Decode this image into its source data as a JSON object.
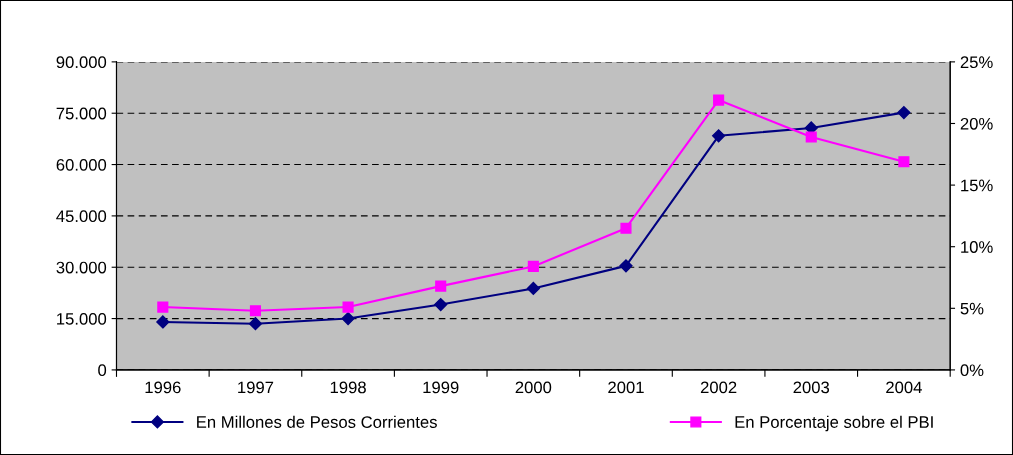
{
  "chart_data": {
    "type": "line",
    "categories": [
      "1996",
      "1997",
      "1998",
      "1999",
      "2000",
      "2001",
      "2002",
      "2003",
      "2004"
    ],
    "series": [
      {
        "name": "En Millones de Pesos Corrientes",
        "color": "#000080",
        "marker": "diamond",
        "values": [
          14000,
          13500,
          15000,
          19100,
          23800,
          30400,
          68400,
          70700,
          75200
        ]
      },
      {
        "name": "En Porcentaje sobre el PBI",
        "color": "#ff00ff",
        "marker": "square",
        "axis": "y2",
        "values": [
          5.1,
          4.8,
          5.1,
          6.8,
          8.4,
          11.5,
          21.9,
          18.9,
          16.9
        ]
      }
    ],
    "ylim": [
      0,
      90000
    ],
    "yticks": [
      {
        "value": 0,
        "label": "0"
      },
      {
        "value": 15000,
        "label": "15.000"
      },
      {
        "value": 30000,
        "label": "30.000"
      },
      {
        "value": 45000,
        "label": "45.000"
      },
      {
        "value": 60000,
        "label": "60.000"
      },
      {
        "value": 75000,
        "label": "75.000"
      },
      {
        "value": 90000,
        "label": "90.000"
      }
    ],
    "y2lim": [
      0,
      25
    ],
    "y2ticks": [
      {
        "value": 0,
        "label": "0%"
      },
      {
        "value": 5,
        "label": "5%"
      },
      {
        "value": 10,
        "label": "10%"
      },
      {
        "value": 15,
        "label": "15%"
      },
      {
        "value": 20,
        "label": "20%"
      },
      {
        "value": 25,
        "label": "25%"
      }
    ],
    "grid": "y",
    "legend": "bottom",
    "line_style": "solid"
  }
}
